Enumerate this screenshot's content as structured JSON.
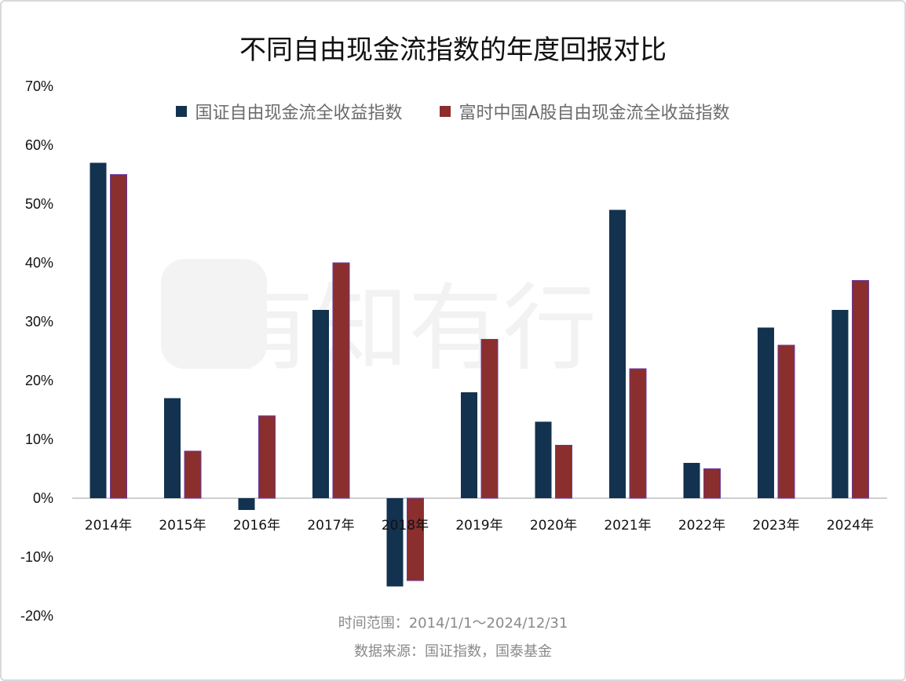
{
  "chart_data": {
    "type": "bar",
    "title": "不同自由现金流指数的年度回报对比",
    "categories": [
      "2014年",
      "2015年",
      "2016年",
      "2017年",
      "2018年",
      "2019年",
      "2020年",
      "2021年",
      "2022年",
      "2023年",
      "2024年"
    ],
    "series": [
      {
        "name": "国证自由现金流全收益指数",
        "color": "#12324f",
        "values": [
          57,
          17,
          -2,
          32,
          -15,
          18,
          13,
          49,
          6,
          29,
          32
        ]
      },
      {
        "name": "富时中国A股自由现金流全收益指数",
        "color": "#8b2e2e",
        "values": [
          55,
          8,
          14,
          40,
          -14,
          27,
          9,
          22,
          5,
          26,
          37
        ]
      }
    ],
    "yticks": [
      "70%",
      "60%",
      "50%",
      "40%",
      "30%",
      "20%",
      "10%",
      "0%",
      "-10%",
      "-20%"
    ],
    "ylim": [
      -20,
      70
    ],
    "grid": false,
    "legend_position": "top-center"
  },
  "watermark": "有知有行",
  "footer": {
    "time_range": "时间范围：2014/1/1～2024/12/31",
    "source": "数据来源：国证指数，国泰基金"
  }
}
